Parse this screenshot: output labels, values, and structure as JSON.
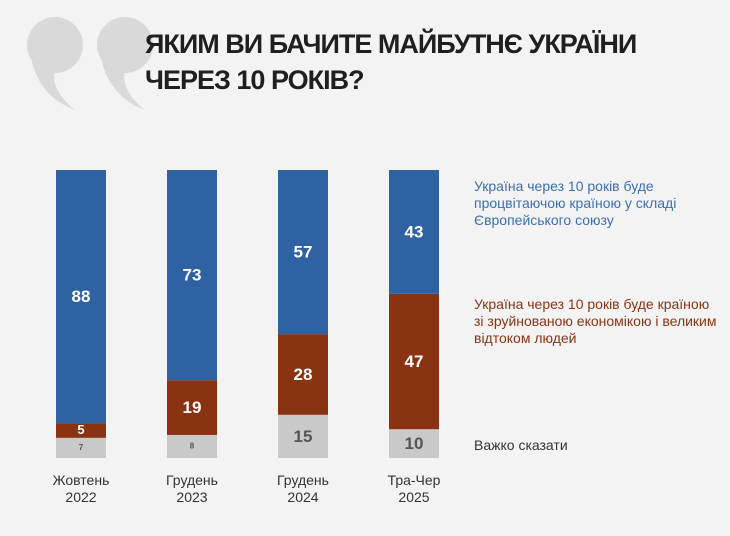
{
  "chart_data": {
    "type": "stacked_bar",
    "title": "ЯКИМ ВИ БАЧИТЕ МАЙБУТНЄ УКРАЇНИ ЧЕРЕЗ 10 РОКІВ?",
    "categories": [
      "Жовтень 2022",
      "Грудень 2023",
      "Грудень 2024",
      "Тра-Чер 2025"
    ],
    "series": [
      {
        "name": "Україна через 10 років буде процвітаючою країною у складі Європейського союзу",
        "color": "#2f62a3",
        "values": [
          88,
          73,
          57,
          43
        ]
      },
      {
        "name": "Україна через 10 років буде країною зі зруйнованою економікою і великим відтоком людей",
        "color": "#8a3312",
        "values": [
          5,
          19,
          28,
          47
        ]
      },
      {
        "name": "Важко сказати",
        "color": "#c9c9c9",
        "values": [
          7,
          8,
          15,
          10
        ]
      }
    ],
    "ylim": [
      0,
      100
    ]
  }
}
